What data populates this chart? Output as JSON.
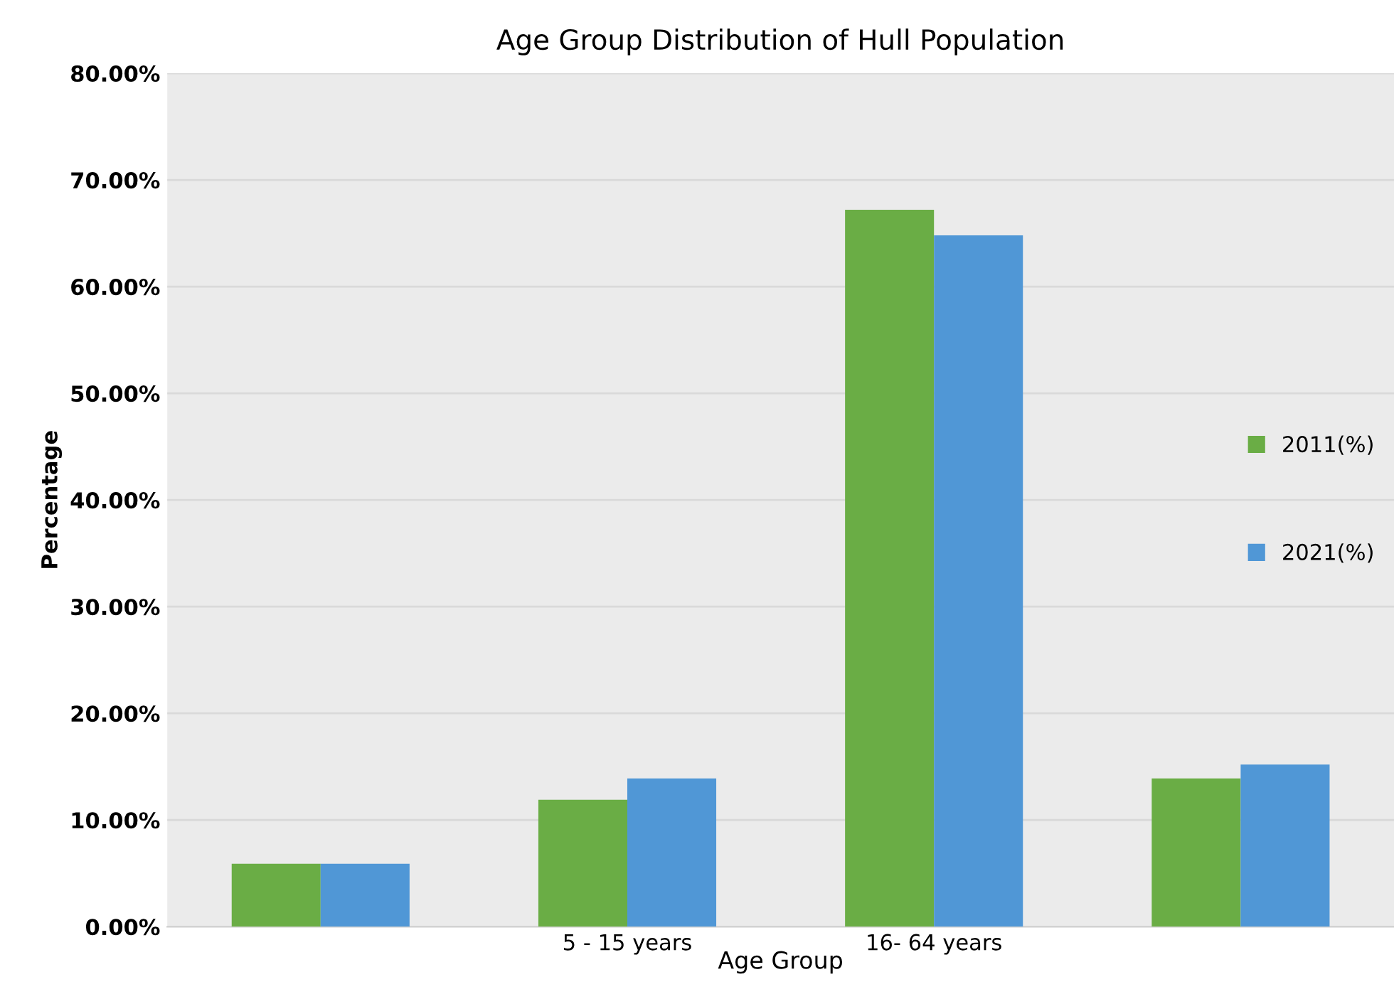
{
  "chart_data": {
    "type": "bar",
    "title": "Age Group Distribution of Hull Population",
    "xlabel": "Age Group",
    "ylabel": "Percentage",
    "categories": [
      null,
      "5 - 15 years",
      "16- 64 years",
      null
    ],
    "series": [
      {
        "name": "2011(%)",
        "color": "#6aad45",
        "values": [
          5.9,
          11.9,
          67.2,
          13.9
        ]
      },
      {
        "name": "2021(%)",
        "color": "#5097d6",
        "values": [
          5.9,
          13.9,
          64.8,
          15.2
        ]
      }
    ],
    "ylim": [
      0,
      80
    ],
    "yticks": [
      {
        "value": 0,
        "label": "0.00%"
      },
      {
        "value": 10,
        "label": "10.00%"
      },
      {
        "value": 20,
        "label": "20.00%"
      },
      {
        "value": 30,
        "label": "30.00%"
      },
      {
        "value": 40,
        "label": "40.00%"
      },
      {
        "value": 50,
        "label": "50.00%"
      },
      {
        "value": 60,
        "label": "60.00%"
      },
      {
        "value": 70,
        "label": "70.00%"
      },
      {
        "value": 80,
        "label": "80.00%"
      }
    ],
    "grid": "y",
    "legend": "right"
  }
}
